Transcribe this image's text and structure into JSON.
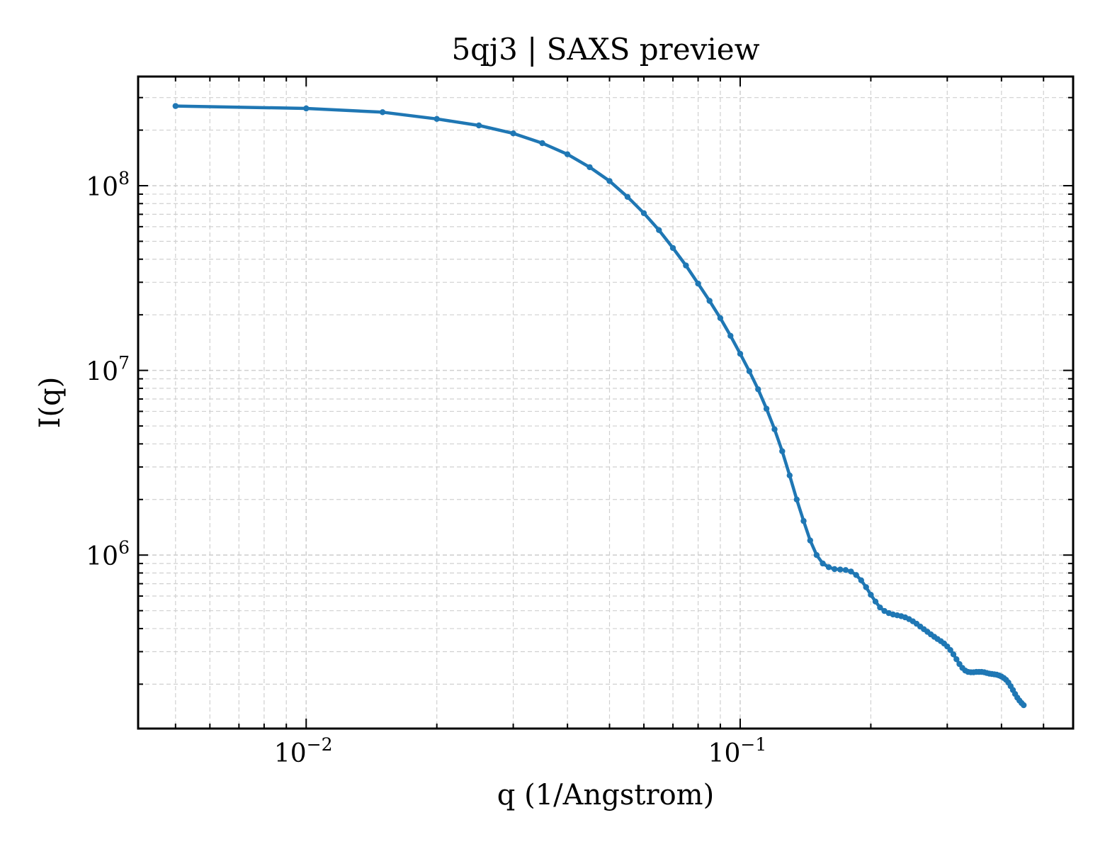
{
  "chart_data": {
    "type": "line",
    "title": "5qj3 | SAXS preview",
    "xlabel": "q (1/Angstrom)",
    "ylabel": "I(q)",
    "xscale": "log",
    "yscale": "log",
    "xlim": [
      0.0041,
      0.585
    ],
    "ylim": [
      115000,
      390000000
    ],
    "grid": true,
    "legend": "none",
    "colors": {
      "series": "#1f77b4",
      "grid": "#d0d0d0",
      "axes": "#000000"
    },
    "x_ticks": [
      {
        "value": 0.01,
        "base": "10",
        "exp": "−2"
      },
      {
        "value": 0.1,
        "base": "10",
        "exp": "−1"
      }
    ],
    "y_ticks": [
      {
        "value": 1000000,
        "base": "10",
        "exp": "6"
      },
      {
        "value": 10000000,
        "base": "10",
        "exp": "7"
      },
      {
        "value": 100000000,
        "base": "10",
        "exp": "8"
      }
    ],
    "series": [
      {
        "color": "#1f77b4",
        "points": [
          [
            0.005,
            270000000.0
          ],
          [
            0.01,
            262000000.0
          ],
          [
            0.015,
            250000000.0
          ],
          [
            0.02,
            230000000.0
          ],
          [
            0.025,
            212000000.0
          ],
          [
            0.03,
            192000000.0
          ],
          [
            0.035,
            170000000.0
          ],
          [
            0.04,
            148000000.0
          ],
          [
            0.045,
            126000000.0
          ],
          [
            0.05,
            106000000.0
          ],
          [
            0.055,
            87000000.0
          ],
          [
            0.06,
            71000000.0
          ],
          [
            0.065,
            57500000.0
          ],
          [
            0.07,
            46000000.0
          ],
          [
            0.075,
            37000000.0
          ],
          [
            0.08,
            29500000.0
          ],
          [
            0.085,
            23800000.0
          ],
          [
            0.09,
            19200000.0
          ],
          [
            0.095,
            15400000.0
          ],
          [
            0.1,
            12300000.0
          ],
          [
            0.105,
            9900000.0
          ],
          [
            0.11,
            7900000.0
          ],
          [
            0.115,
            6200000.0
          ],
          [
            0.12,
            4800000.0
          ],
          [
            0.125,
            3650000.0
          ],
          [
            0.13,
            2700000.0
          ],
          [
            0.135,
            2000000.0
          ],
          [
            0.14,
            1530000.0
          ],
          [
            0.145,
            1200000.0
          ],
          [
            0.15,
            1000000.0
          ],
          [
            0.155,
            900000.0
          ],
          [
            0.16,
            860000.0
          ],
          [
            0.165,
            840000.0
          ],
          [
            0.17,
            835000.0
          ],
          [
            0.175,
            830000.0
          ],
          [
            0.18,
            815000.0
          ],
          [
            0.185,
            780000.0
          ],
          [
            0.19,
            730000.0
          ],
          [
            0.195,
            670000.0
          ],
          [
            0.2,
            610000.0
          ],
          [
            0.205,
            560000.0
          ],
          [
            0.21,
            520000.0
          ],
          [
            0.215,
            498000.0
          ],
          [
            0.22,
            485000.0
          ],
          [
            0.225,
            477000.0
          ],
          [
            0.23,
            472000.0
          ],
          [
            0.235,
            467000.0
          ],
          [
            0.24,
            460000.0
          ],
          [
            0.245,
            450000.0
          ],
          [
            0.25,
            438000.0
          ],
          [
            0.255,
            425000.0
          ],
          [
            0.26,
            410000.0
          ],
          [
            0.265,
            397000.0
          ],
          [
            0.27,
            384000.0
          ],
          [
            0.275,
            372000.0
          ],
          [
            0.28,
            361000.0
          ],
          [
            0.285,
            351000.0
          ],
          [
            0.29,
            342000.0
          ],
          [
            0.295,
            332000.0
          ],
          [
            0.3,
            320000.0
          ],
          [
            0.305,
            306000.0
          ],
          [
            0.31,
            290000.0
          ],
          [
            0.315,
            273000.0
          ],
          [
            0.32,
            257000.0
          ],
          [
            0.325,
            245000.0
          ],
          [
            0.33,
            237000.0
          ],
          [
            0.335,
            233000.0
          ],
          [
            0.34,
            232000.0
          ],
          [
            0.345,
            232000.0
          ],
          [
            0.35,
            233000.0
          ],
          [
            0.355,
            233000.0
          ],
          [
            0.36,
            233000.0
          ],
          [
            0.365,
            232000.0
          ],
          [
            0.37,
            230000.0
          ],
          [
            0.375,
            228000.0
          ],
          [
            0.38,
            227000.0
          ],
          [
            0.385,
            226000.0
          ],
          [
            0.39,
            225000.0
          ],
          [
            0.395,
            223000.0
          ],
          [
            0.4,
            220000.0
          ],
          [
            0.405,
            216000.0
          ],
          [
            0.41,
            211000.0
          ],
          [
            0.415,
            204000.0
          ],
          [
            0.42,
            195000.0
          ],
          [
            0.425,
            186000.0
          ],
          [
            0.43,
            177000.0
          ],
          [
            0.435,
            169000.0
          ],
          [
            0.44,
            163000.0
          ],
          [
            0.445,
            158000.0
          ],
          [
            0.45,
            154000.0
          ]
        ]
      }
    ]
  }
}
